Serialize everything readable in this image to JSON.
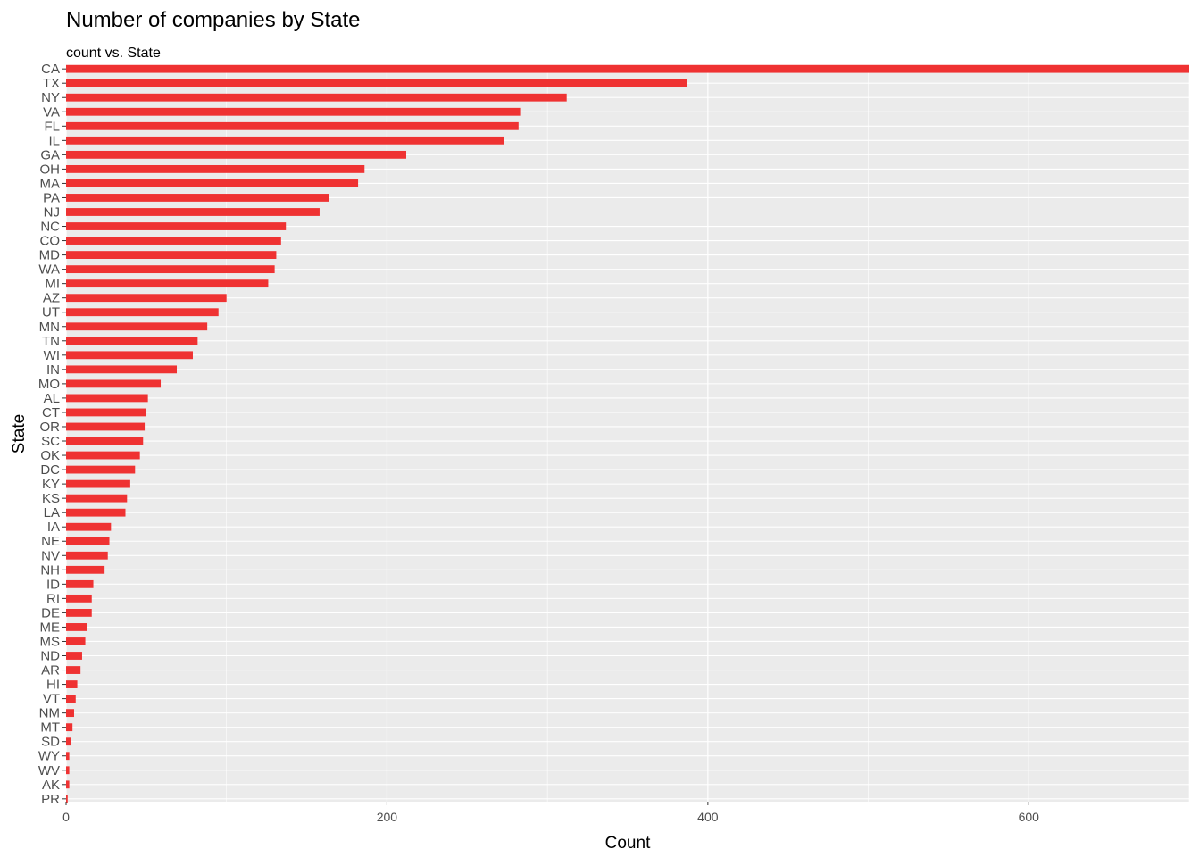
{
  "chart_data": {
    "type": "bar",
    "orientation": "horizontal",
    "title": "Number of companies by State",
    "subtitle": "count vs. State",
    "xlabel": "Count",
    "ylabel": "State",
    "xlim": [
      0,
      700
    ],
    "x_ticks": [
      0,
      200,
      400,
      600
    ],
    "grid": true,
    "bar_color": "#ef3232",
    "panel_background": "#ebebeb",
    "grid_color": "#ffffff",
    "categories": [
      "CA",
      "TX",
      "NY",
      "VA",
      "FL",
      "IL",
      "GA",
      "OH",
      "MA",
      "PA",
      "NJ",
      "NC",
      "CO",
      "MD",
      "WA",
      "MI",
      "AZ",
      "UT",
      "MN",
      "TN",
      "WI",
      "IN",
      "MO",
      "AL",
      "CT",
      "OR",
      "SC",
      "OK",
      "DC",
      "KY",
      "KS",
      "LA",
      "IA",
      "NE",
      "NV",
      "NH",
      "ID",
      "RI",
      "DE",
      "ME",
      "MS",
      "ND",
      "AR",
      "HI",
      "VT",
      "NM",
      "MT",
      "SD",
      "WY",
      "WV",
      "AK",
      "PR"
    ],
    "values": [
      701,
      387,
      312,
      283,
      282,
      273,
      212,
      186,
      182,
      164,
      158,
      137,
      134,
      131,
      130,
      126,
      100,
      95,
      88,
      82,
      79,
      69,
      59,
      51,
      50,
      49,
      48,
      46,
      43,
      40,
      38,
      37,
      28,
      27,
      26,
      24,
      17,
      16,
      16,
      13,
      12,
      10,
      9,
      7,
      6,
      5,
      4,
      3,
      2,
      2,
      2,
      1
    ]
  }
}
